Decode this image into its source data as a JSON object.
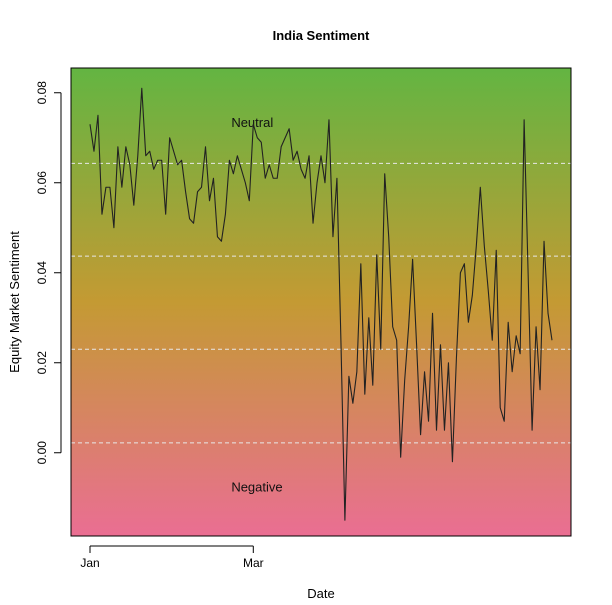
{
  "chart_data": {
    "type": "line",
    "title": "India Sentiment",
    "xlabel": "Date",
    "ylabel": "Equity Market Sentiment",
    "ylim": [
      -0.0185,
      0.0855
    ],
    "yticks": [
      0.0,
      0.02,
      0.04,
      0.06,
      0.08
    ],
    "ytick_labels": [
      "0.00",
      "0.02",
      "0.04",
      "0.06",
      "0.08"
    ],
    "xticks": [
      {
        "index": 0,
        "label": "Jan"
      },
      {
        "index": 41,
        "label": "Mar"
      }
    ],
    "background_gradient": {
      "top": "#63b542",
      "middle": "#c49a33",
      "bottom": "#ea6e93"
    },
    "reference_lines": [
      0.0643,
      0.0437,
      0.023,
      0.0022
    ],
    "reference_line_color": "#e8e8e8",
    "line_color": "#222222",
    "annotations": [
      {
        "text": "Neutral",
        "x_index": 39,
        "y": 0.0735
      },
      {
        "text": "Negative",
        "x_index": 39,
        "y": -0.0075
      }
    ],
    "series": [
      {
        "values": [
          0.073,
          0.067,
          0.075,
          0.053,
          0.059,
          0.059,
          0.05,
          0.068,
          0.059,
          0.068,
          0.064,
          0.055,
          0.066,
          0.081,
          0.066,
          0.067,
          0.063,
          0.065,
          0.065,
          0.053,
          0.07,
          0.067,
          0.064,
          0.065,
          0.058,
          0.052,
          0.051,
          0.058,
          0.059,
          0.068,
          0.056,
          0.061,
          0.048,
          0.047,
          0.053,
          0.065,
          0.062,
          0.066,
          0.063,
          0.06,
          0.056,
          0.073,
          0.07,
          0.069,
          0.061,
          0.064,
          0.061,
          0.061,
          0.068,
          0.07,
          0.072,
          0.065,
          0.067,
          0.063,
          0.061,
          0.066,
          0.051,
          0.06,
          0.066,
          0.06,
          0.074,
          0.048,
          0.061,
          0.025,
          -0.015,
          0.017,
          0.011,
          0.018,
          0.042,
          0.013,
          0.03,
          0.015,
          0.044,
          0.023,
          0.062,
          0.048,
          0.028,
          0.025,
          -0.001,
          0.016,
          0.028,
          0.043,
          0.024,
          0.004,
          0.018,
          0.007,
          0.031,
          0.005,
          0.024,
          0.005,
          0.02,
          -0.002,
          0.021,
          0.04,
          0.042,
          0.029,
          0.035,
          0.046,
          0.059,
          0.046,
          0.036,
          0.025,
          0.045,
          0.01,
          0.007,
          0.029,
          0.018,
          0.026,
          0.022,
          0.074,
          0.04,
          0.005,
          0.028,
          0.014,
          0.047,
          0.031,
          0.025
        ]
      }
    ]
  }
}
